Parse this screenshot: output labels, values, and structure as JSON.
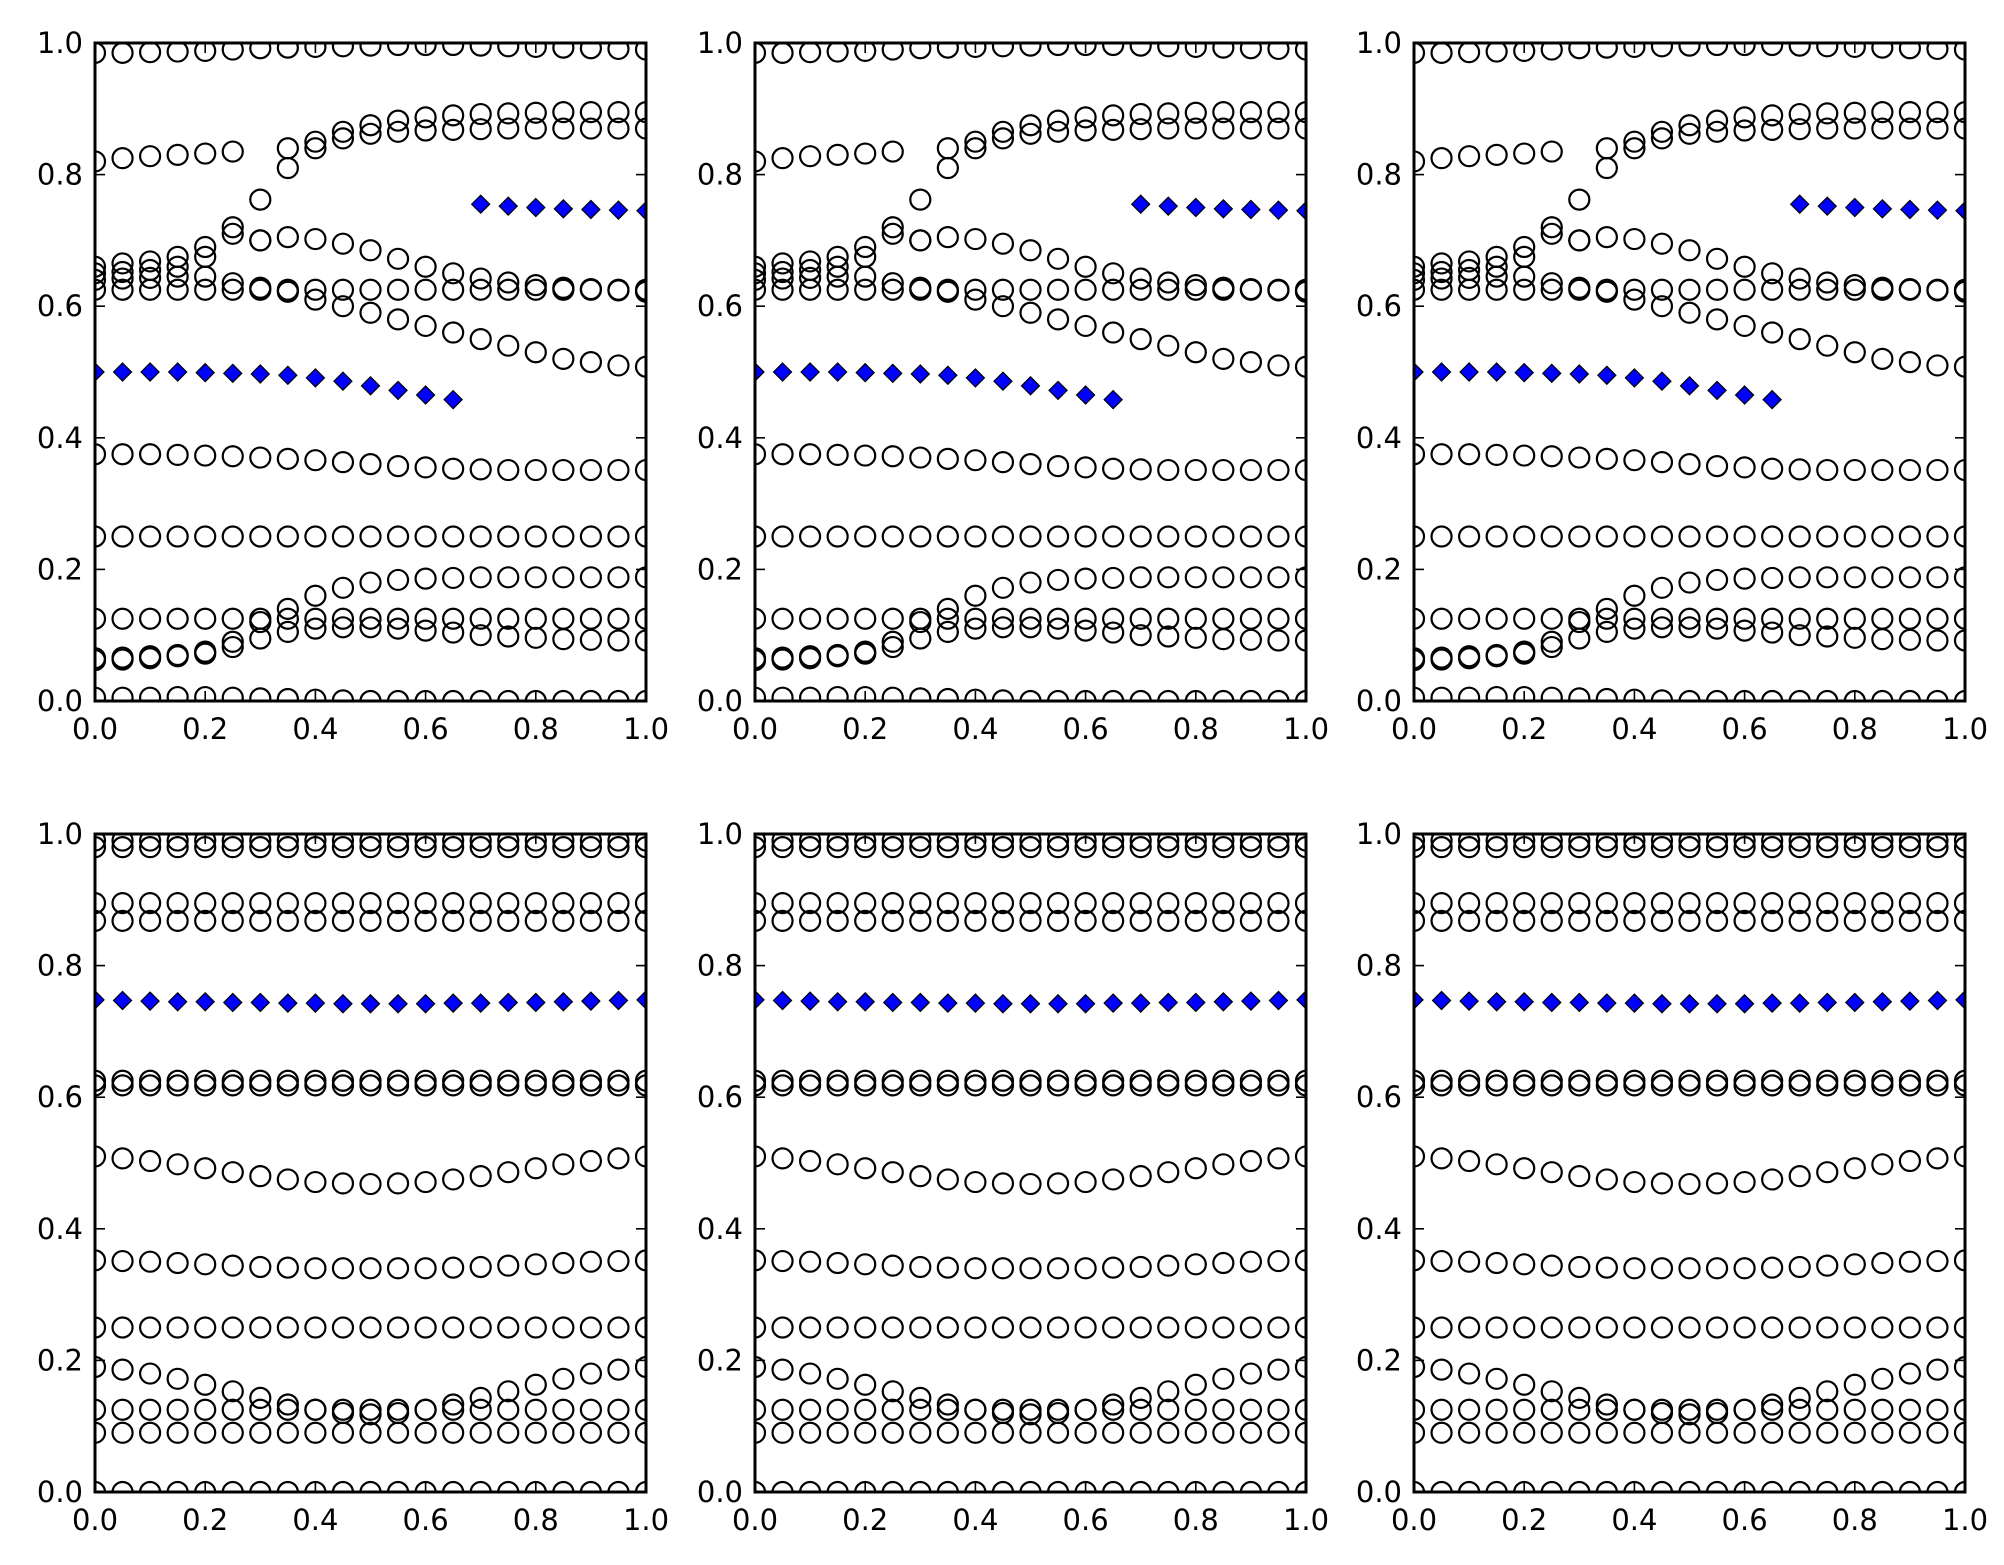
{
  "figure": {
    "layout": "2 rows x 3 columns of scatter panels",
    "marker_styles": {
      "open_circle": {
        "fill": "none",
        "edge": "#000000"
      },
      "diamond": {
        "fill": "#0000ff",
        "edge": "#000000"
      }
    }
  },
  "chart_data": [
    {
      "type": "scatter",
      "panel": "row1-col1",
      "xlim": [
        0,
        1
      ],
      "ylim": [
        0,
        1
      ],
      "xticks": [
        "0.0",
        "0.2",
        "0.4",
        "0.6",
        "0.8",
        "1.0"
      ],
      "yticks": [
        "0.0",
        "0.2",
        "0.4",
        "0.6",
        "0.8",
        "1.0"
      ],
      "x": [
        0.0,
        0.05,
        0.1,
        0.15,
        0.2,
        0.25,
        0.3,
        0.35,
        0.4,
        0.45,
        0.5,
        0.55,
        0.6,
        0.65,
        0.7,
        0.75,
        0.8,
        0.85,
        0.9,
        0.95,
        1.0
      ],
      "series": [
        {
          "marker": "open_circle",
          "values": [
            0.985,
            0.985,
            0.986,
            0.987,
            0.988,
            0.99,
            0.992,
            0.993,
            0.994,
            0.995,
            0.996,
            0.997,
            0.997,
            0.997,
            0.996,
            0.995,
            0.994,
            0.993,
            0.992,
            0.991,
            0.99
          ]
        },
        {
          "marker": "open_circle",
          "values": [
            0.82,
            0.825,
            0.828,
            0.83,
            0.832,
            0.835,
            0.762,
            0.84,
            0.85,
            0.865,
            0.875,
            0.882,
            0.887,
            0.89,
            0.892,
            0.893,
            0.894,
            0.895,
            0.895,
            0.895,
            0.895
          ]
        },
        {
          "marker": "open_circle",
          "values": [
            0.66,
            0.665,
            0.668,
            0.675,
            0.69,
            0.72,
            0.7,
            0.81,
            0.84,
            0.855,
            0.862,
            0.865,
            0.867,
            0.868,
            0.869,
            0.87,
            0.87,
            0.87,
            0.87,
            0.87,
            0.87
          ]
        },
        {
          "marker": "open_circle",
          "values": [
            0.65,
            0.652,
            0.655,
            0.66,
            0.675,
            0.71,
            0.7,
            0.705,
            0.702,
            0.695,
            0.685,
            0.672,
            0.66,
            0.65,
            0.642,
            0.636,
            0.632,
            0.628,
            0.626,
            0.624,
            0.622
          ]
        },
        {
          "marker": "open_circle",
          "values": [
            0.64,
            0.642,
            0.643,
            0.645,
            0.645,
            0.635,
            0.628,
            0.622,
            0.61,
            0.6,
            0.59,
            0.58,
            0.57,
            0.56,
            0.55,
            0.54,
            0.53,
            0.52,
            0.515,
            0.51,
            0.508
          ]
        },
        {
          "marker": "open_circle",
          "values": [
            0.625,
            0.625,
            0.625,
            0.625,
            0.625,
            0.625,
            0.625,
            0.625,
            0.625,
            0.625,
            0.625,
            0.625,
            0.625,
            0.625,
            0.625,
            0.625,
            0.625,
            0.625,
            0.625,
            0.625,
            0.625
          ]
        },
        {
          "marker": "open_circle",
          "values": [
            0.375,
            0.375,
            0.375,
            0.374,
            0.373,
            0.372,
            0.37,
            0.368,
            0.366,
            0.363,
            0.36,
            0.357,
            0.355,
            0.353,
            0.352,
            0.351,
            0.351,
            0.351,
            0.351,
            0.351,
            0.351
          ]
        },
        {
          "marker": "open_circle",
          "values": [
            0.25,
            0.25,
            0.25,
            0.25,
            0.25,
            0.25,
            0.25,
            0.25,
            0.25,
            0.25,
            0.25,
            0.25,
            0.25,
            0.25,
            0.25,
            0.25,
            0.25,
            0.25,
            0.25,
            0.25,
            0.25
          ]
        },
        {
          "marker": "open_circle",
          "values": [
            0.125,
            0.125,
            0.125,
            0.125,
            0.125,
            0.125,
            0.125,
            0.125,
            0.125,
            0.125,
            0.125,
            0.125,
            0.125,
            0.125,
            0.125,
            0.125,
            0.125,
            0.125,
            0.125,
            0.125,
            0.125
          ]
        },
        {
          "marker": "open_circle",
          "values": [
            0.065,
            0.066,
            0.068,
            0.07,
            0.075,
            0.09,
            0.12,
            0.14,
            0.16,
            0.172,
            0.18,
            0.184,
            0.186,
            0.187,
            0.188,
            0.188,
            0.188,
            0.188,
            0.188,
            0.188,
            0.188
          ]
        },
        {
          "marker": "open_circle",
          "values": [
            0.062,
            0.063,
            0.065,
            0.068,
            0.072,
            0.082,
            0.095,
            0.105,
            0.11,
            0.112,
            0.112,
            0.11,
            0.107,
            0.104,
            0.1,
            0.098,
            0.096,
            0.094,
            0.093,
            0.092,
            0.092
          ]
        },
        {
          "marker": "open_circle",
          "values": [
            0.005,
            0.005,
            0.005,
            0.006,
            0.006,
            0.005,
            0.004,
            0.003,
            0.002,
            0.001,
            0.0,
            0.0,
            0.0,
            0.0,
            0.0,
            0.0,
            0.0,
            0.0,
            0.0,
            0.0,
            0.0
          ]
        },
        {
          "marker": "diamond",
          "values": [
            0.5,
            0.5,
            0.5,
            0.5,
            0.499,
            0.498,
            0.497,
            0.495,
            0.491,
            0.486,
            0.479,
            0.472,
            0.465,
            0.458,
            null,
            null,
            null,
            null,
            null,
            null,
            null
          ]
        },
        {
          "marker": "diamond",
          "values": [
            null,
            null,
            null,
            null,
            null,
            null,
            null,
            null,
            null,
            null,
            null,
            null,
            null,
            null,
            0.755,
            0.752,
            0.75,
            0.748,
            0.747,
            0.746,
            0.745
          ]
        }
      ]
    },
    {
      "type": "scatter",
      "panel": "row1-col2",
      "xlim": [
        0,
        1
      ],
      "ylim": [
        0,
        1
      ],
      "xticks": [
        "0.0",
        "0.2",
        "0.4",
        "0.6",
        "0.8",
        "1.0"
      ],
      "yticks": [
        "0.0",
        "0.2",
        "0.4",
        "0.6",
        "0.8",
        "1.0"
      ],
      "same_data_as": "row1-col1"
    },
    {
      "type": "scatter",
      "panel": "row1-col3",
      "xlim": [
        0,
        1
      ],
      "ylim": [
        0,
        1
      ],
      "xticks": [
        "0.0",
        "0.2",
        "0.4",
        "0.6",
        "0.8",
        "1.0"
      ],
      "yticks": [
        "0.0",
        "0.2",
        "0.4",
        "0.6",
        "0.8",
        "1.0"
      ],
      "same_data_as": "row1-col1"
    },
    {
      "type": "scatter",
      "panel": "row2-col1",
      "xlim": [
        0,
        1
      ],
      "ylim": [
        0,
        1
      ],
      "xticks": [
        "0.0",
        "0.2",
        "0.4",
        "0.6",
        "0.8",
        "1.0"
      ],
      "yticks": [
        "0.0",
        "0.2",
        "0.4",
        "0.6",
        "0.8",
        "1.0"
      ],
      "x": [
        0.0,
        0.05,
        0.1,
        0.15,
        0.2,
        0.25,
        0.3,
        0.35,
        0.4,
        0.45,
        0.5,
        0.55,
        0.6,
        0.65,
        0.7,
        0.75,
        0.8,
        0.85,
        0.9,
        0.95,
        1.0
      ],
      "series": [
        {
          "marker": "open_circle",
          "values": [
            0.99,
            0.99,
            0.99,
            0.99,
            0.99,
            0.99,
            0.99,
            0.99,
            0.99,
            0.99,
            0.99,
            0.99,
            0.99,
            0.99,
            0.99,
            0.99,
            0.99,
            0.99,
            0.99,
            0.99,
            0.99
          ]
        },
        {
          "marker": "open_circle",
          "values": [
            0.98,
            0.98,
            0.98,
            0.98,
            0.98,
            0.98,
            0.98,
            0.98,
            0.98,
            0.98,
            0.98,
            0.98,
            0.98,
            0.98,
            0.98,
            0.98,
            0.98,
            0.98,
            0.98,
            0.98,
            0.98
          ]
        },
        {
          "marker": "open_circle",
          "values": [
            0.895,
            0.895,
            0.895,
            0.895,
            0.895,
            0.895,
            0.895,
            0.895,
            0.895,
            0.895,
            0.895,
            0.895,
            0.895,
            0.895,
            0.895,
            0.895,
            0.895,
            0.895,
            0.895,
            0.895,
            0.895
          ]
        },
        {
          "marker": "open_circle",
          "values": [
            0.868,
            0.868,
            0.868,
            0.868,
            0.868,
            0.868,
            0.868,
            0.868,
            0.868,
            0.868,
            0.868,
            0.868,
            0.868,
            0.868,
            0.868,
            0.868,
            0.868,
            0.868,
            0.868,
            0.868,
            0.868
          ]
        },
        {
          "marker": "open_circle",
          "values": [
            0.625,
            0.625,
            0.625,
            0.625,
            0.625,
            0.625,
            0.625,
            0.625,
            0.625,
            0.625,
            0.625,
            0.625,
            0.625,
            0.625,
            0.625,
            0.625,
            0.625,
            0.625,
            0.625,
            0.625,
            0.625
          ]
        },
        {
          "marker": "open_circle",
          "values": [
            0.618,
            0.618,
            0.618,
            0.618,
            0.618,
            0.618,
            0.618,
            0.618,
            0.618,
            0.618,
            0.618,
            0.618,
            0.618,
            0.618,
            0.618,
            0.618,
            0.618,
            0.618,
            0.618,
            0.618,
            0.618
          ]
        },
        {
          "marker": "open_circle",
          "values": [
            0.51,
            0.507,
            0.503,
            0.498,
            0.492,
            0.486,
            0.48,
            0.475,
            0.471,
            0.469,
            0.468,
            0.469,
            0.471,
            0.475,
            0.48,
            0.486,
            0.492,
            0.498,
            0.503,
            0.507,
            0.51
          ]
        },
        {
          "marker": "open_circle",
          "values": [
            0.352,
            0.351,
            0.35,
            0.348,
            0.346,
            0.344,
            0.342,
            0.341,
            0.34,
            0.34,
            0.34,
            0.34,
            0.34,
            0.341,
            0.342,
            0.344,
            0.346,
            0.348,
            0.35,
            0.351,
            0.352
          ]
        },
        {
          "marker": "open_circle",
          "values": [
            0.25,
            0.25,
            0.25,
            0.25,
            0.25,
            0.25,
            0.25,
            0.25,
            0.25,
            0.25,
            0.25,
            0.25,
            0.25,
            0.25,
            0.25,
            0.25,
            0.25,
            0.25,
            0.25,
            0.25,
            0.25
          ]
        },
        {
          "marker": "open_circle",
          "values": [
            0.19,
            0.186,
            0.18,
            0.172,
            0.163,
            0.153,
            0.143,
            0.133,
            0.125,
            0.12,
            0.118,
            0.12,
            0.125,
            0.133,
            0.143,
            0.153,
            0.163,
            0.172,
            0.18,
            0.186,
            0.19
          ]
        },
        {
          "marker": "open_circle",
          "values": [
            0.125,
            0.125,
            0.125,
            0.125,
            0.125,
            0.125,
            0.125,
            0.125,
            0.125,
            0.125,
            0.125,
            0.125,
            0.125,
            0.125,
            0.125,
            0.125,
            0.125,
            0.125,
            0.125,
            0.125,
            0.125
          ]
        },
        {
          "marker": "open_circle",
          "values": [
            0.09,
            0.09,
            0.09,
            0.09,
            0.09,
            0.09,
            0.09,
            0.09,
            0.09,
            0.09,
            0.09,
            0.09,
            0.09,
            0.09,
            0.09,
            0.09,
            0.09,
            0.09,
            0.09,
            0.09,
            0.09
          ]
        },
        {
          "marker": "open_circle",
          "values": [
            0.0,
            0.0,
            0.0,
            0.0,
            0.0,
            0.0,
            0.0,
            0.0,
            0.0,
            0.0,
            0.0,
            0.0,
            0.0,
            0.0,
            0.0,
            0.0,
            0.0,
            0.0,
            0.0,
            0.0,
            0.0
          ]
        },
        {
          "marker": "diamond",
          "values": [
            0.748,
            0.747,
            0.746,
            0.745,
            0.745,
            0.744,
            0.744,
            0.743,
            0.743,
            0.742,
            0.742,
            0.742,
            0.742,
            0.743,
            0.743,
            0.744,
            0.744,
            0.745,
            0.746,
            0.747,
            0.748
          ]
        }
      ]
    },
    {
      "type": "scatter",
      "panel": "row2-col2",
      "xlim": [
        0,
        1
      ],
      "ylim": [
        0,
        1
      ],
      "xticks": [
        "0.0",
        "0.2",
        "0.4",
        "0.6",
        "0.8",
        "1.0"
      ],
      "yticks": [
        "0.0",
        "0.2",
        "0.4",
        "0.6",
        "0.8",
        "1.0"
      ],
      "same_data_as": "row2-col1"
    },
    {
      "type": "scatter",
      "panel": "row2-col3",
      "xlim": [
        0,
        1
      ],
      "ylim": [
        0,
        1
      ],
      "xticks": [
        "0.0",
        "0.2",
        "0.4",
        "0.6",
        "0.8",
        "1.0"
      ],
      "yticks": [
        "0.0",
        "0.2",
        "0.4",
        "0.6",
        "0.8",
        "1.0"
      ],
      "same_data_as": "row2-col1"
    }
  ]
}
